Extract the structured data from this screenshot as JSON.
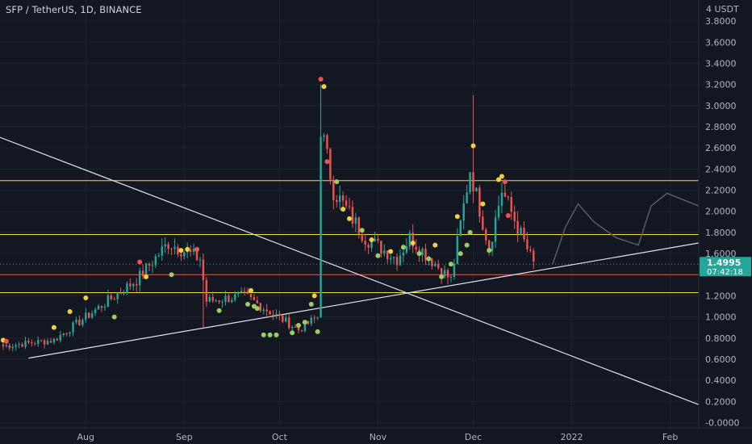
{
  "header": {
    "symbol_title": "SFP / TetherUS, 1D, BINANCE"
  },
  "axis": {
    "currency": "4 USDT",
    "ytick_labels": [
      "3.8000",
      "3.6000",
      "3.4000",
      "3.2000",
      "3.0000",
      "2.8000",
      "2.6000",
      "2.4000",
      "2.2000",
      "2.0000",
      "1.8000",
      "1.6000",
      "1.2000",
      "1.0000",
      "0.8000",
      "0.6000",
      "0.4000",
      "0.2000",
      "-0.0000"
    ],
    "xtick_labels": [
      "Aug",
      "Sep",
      "Oct",
      "Nov",
      "Dec",
      "2022",
      "Feb"
    ]
  },
  "price_badge": {
    "price": "1.4995",
    "countdown": "07:42:18",
    "color": "#26a69a"
  },
  "colors": {
    "background": "#131722",
    "up": "#26a69a",
    "down": "#ef5350",
    "level": "#e8e23a",
    "red_level": "#ef5350",
    "trend": "#e0e3eb",
    "dot_yellow": "#f4d03f",
    "dot_red": "#ef5350",
    "dot_green": "#9ccc65"
  },
  "chart_data": {
    "type": "candlestick",
    "title": "SFP / TetherUS, 1D, BINANCE",
    "ylim": [
      -0.05,
      4.0
    ],
    "xlim": [
      "2021-07-05",
      "2022-02-10"
    ],
    "grid": true,
    "horizontal_levels": [
      2.29,
      1.78,
      1.4,
      1.23
    ],
    "trendlines": [
      {
        "from": [
          "2021-07-05",
          2.7
        ],
        "to": [
          "2022-02-10",
          0.17
        ]
      },
      {
        "from": [
          "2021-07-14",
          0.61
        ],
        "to": [
          "2022-02-10",
          1.7
        ]
      }
    ],
    "projection_path": [
      [
        "2021-12-26",
        1.5
      ],
      [
        "2021-12-30",
        1.85
      ],
      [
        "2022-01-03",
        2.07
      ],
      [
        "2022-01-08",
        1.9
      ],
      [
        "2022-01-15",
        1.75
      ],
      [
        "2022-01-22",
        1.68
      ],
      [
        "2022-01-26",
        2.05
      ],
      [
        "2022-01-31",
        2.17
      ],
      [
        "2022-02-10",
        2.05
      ]
    ],
    "segments": [
      {
        "start": "2021-07-05",
        "end": "2021-07-22",
        "from": 0.72,
        "to": 0.78
      },
      {
        "start": "2021-07-22",
        "end": "2021-08-17",
        "from": 0.78,
        "to": 1.35
      },
      {
        "start": "2021-08-17",
        "end": "2021-08-27",
        "from": 1.35,
        "to": 1.7
      },
      {
        "start": "2021-08-27",
        "end": "2021-09-06",
        "from": 1.7,
        "to": 1.55
      },
      {
        "start": "2021-09-06",
        "end": "2021-09-08",
        "from": 1.55,
        "to": 1.15
      },
      {
        "start": "2021-09-08",
        "end": "2021-09-20",
        "from": 1.15,
        "to": 1.2
      },
      {
        "start": "2021-09-20",
        "end": "2021-10-07",
        "from": 1.2,
        "to": 0.88
      },
      {
        "start": "2021-10-07",
        "end": "2021-10-13",
        "from": 0.88,
        "to": 1.0
      },
      {
        "start": "2021-10-13",
        "end": "2021-10-14",
        "from": 1.0,
        "to": 2.8
      },
      {
        "start": "2021-10-14",
        "end": "2021-10-18",
        "from": 2.8,
        "to": 2.2
      },
      {
        "start": "2021-10-18",
        "end": "2021-10-28",
        "from": 2.2,
        "to": 1.75
      },
      {
        "start": "2021-10-28",
        "end": "2021-11-07",
        "from": 1.75,
        "to": 1.55
      },
      {
        "start": "2021-11-07",
        "end": "2021-11-11",
        "from": 1.55,
        "to": 1.75
      },
      {
        "start": "2021-11-11",
        "end": "2021-11-24",
        "from": 1.75,
        "to": 1.35
      },
      {
        "start": "2021-11-24",
        "end": "2021-11-30",
        "from": 1.35,
        "to": 2.4
      },
      {
        "start": "2021-11-30",
        "end": "2021-12-06",
        "from": 2.4,
        "to": 1.65
      },
      {
        "start": "2021-12-06",
        "end": "2021-12-10",
        "from": 1.65,
        "to": 2.2
      },
      {
        "start": "2021-12-10",
        "end": "2021-12-20",
        "from": 2.2,
        "to": 1.5
      }
    ],
    "spikes": [
      {
        "date": "2021-09-07",
        "low": 0.9
      },
      {
        "date": "2021-10-14",
        "high": 3.2
      },
      {
        "date": "2021-12-01",
        "high": 3.1
      }
    ],
    "signals": [
      {
        "date": "2021-07-06",
        "value": 0.78,
        "color": "dot_yellow"
      },
      {
        "date": "2021-07-07",
        "value": 0.77,
        "color": "dot_red"
      },
      {
        "date": "2021-07-22",
        "value": 0.9,
        "color": "dot_yellow"
      },
      {
        "date": "2021-07-27",
        "value": 1.05,
        "color": "dot_yellow"
      },
      {
        "date": "2021-08-01",
        "value": 1.18,
        "color": "dot_yellow"
      },
      {
        "date": "2021-08-10",
        "value": 1.0,
        "color": "dot_green"
      },
      {
        "date": "2021-08-18",
        "value": 1.52,
        "color": "dot_red"
      },
      {
        "date": "2021-08-20",
        "value": 1.38,
        "color": "dot_yellow"
      },
      {
        "date": "2021-08-28",
        "value": 1.4,
        "color": "dot_green"
      },
      {
        "date": "2021-08-31",
        "value": 1.63,
        "color": "dot_yellow"
      },
      {
        "date": "2021-09-02",
        "value": 1.64,
        "color": "dot_yellow"
      },
      {
        "date": "2021-09-05",
        "value": 1.64,
        "color": "dot_red"
      },
      {
        "date": "2021-09-12",
        "value": 1.06,
        "color": "dot_green"
      },
      {
        "date": "2021-09-22",
        "value": 1.25,
        "color": "dot_yellow"
      },
      {
        "date": "2021-09-21",
        "value": 1.12,
        "color": "dot_green"
      },
      {
        "date": "2021-09-23",
        "value": 1.1,
        "color": "dot_green"
      },
      {
        "date": "2021-09-24",
        "value": 1.08,
        "color": "dot_green"
      },
      {
        "date": "2021-09-26",
        "value": 0.83,
        "color": "dot_green"
      },
      {
        "date": "2021-09-28",
        "value": 0.83,
        "color": "dot_green"
      },
      {
        "date": "2021-09-30",
        "value": 0.83,
        "color": "dot_green"
      },
      {
        "date": "2021-10-05",
        "value": 0.85,
        "color": "dot_green"
      },
      {
        "date": "2021-10-07",
        "value": 0.92,
        "color": "dot_green"
      },
      {
        "date": "2021-10-09",
        "value": 0.95,
        "color": "dot_green"
      },
      {
        "date": "2021-10-11",
        "value": 1.12,
        "color": "dot_green"
      },
      {
        "date": "2021-10-12",
        "value": 1.2,
        "color": "dot_yellow"
      },
      {
        "date": "2021-10-13",
        "value": 0.86,
        "color": "dot_green"
      },
      {
        "date": "2021-10-14",
        "value": 3.25,
        "color": "dot_red"
      },
      {
        "date": "2021-10-15",
        "value": 3.18,
        "color": "dot_yellow"
      },
      {
        "date": "2021-10-16",
        "value": 2.47,
        "color": "dot_red"
      },
      {
        "date": "2021-10-19",
        "value": 2.28,
        "color": "dot_green"
      },
      {
        "date": "2021-10-21",
        "value": 2.02,
        "color": "dot_yellow"
      },
      {
        "date": "2021-10-23",
        "value": 1.93,
        "color": "dot_yellow"
      },
      {
        "date": "2021-10-27",
        "value": 1.82,
        "color": "dot_green"
      },
      {
        "date": "2021-10-30",
        "value": 1.73,
        "color": "dot_yellow"
      },
      {
        "date": "2021-11-01",
        "value": 1.58,
        "color": "dot_green"
      },
      {
        "date": "2021-11-05",
        "value": 1.62,
        "color": "dot_yellow"
      },
      {
        "date": "2021-11-09",
        "value": 1.66,
        "color": "dot_green"
      },
      {
        "date": "2021-11-12",
        "value": 1.7,
        "color": "dot_yellow"
      },
      {
        "date": "2021-11-14",
        "value": 1.6,
        "color": "dot_green"
      },
      {
        "date": "2021-11-17",
        "value": 1.55,
        "color": "dot_green"
      },
      {
        "date": "2021-11-19",
        "value": 1.68,
        "color": "dot_yellow"
      },
      {
        "date": "2021-11-21",
        "value": 1.38,
        "color": "dot_green"
      },
      {
        "date": "2021-11-24",
        "value": 1.5,
        "color": "dot_green"
      },
      {
        "date": "2021-11-26",
        "value": 1.95,
        "color": "dot_yellow"
      },
      {
        "date": "2021-11-27",
        "value": 1.6,
        "color": "dot_green"
      },
      {
        "date": "2021-11-29",
        "value": 1.68,
        "color": "dot_green"
      },
      {
        "date": "2021-11-30",
        "value": 1.8,
        "color": "dot_green"
      },
      {
        "date": "2021-12-01",
        "value": 2.62,
        "color": "dot_yellow"
      },
      {
        "date": "2021-12-04",
        "value": 2.07,
        "color": "dot_yellow"
      },
      {
        "date": "2021-12-06",
        "value": 1.63,
        "color": "dot_green"
      },
      {
        "date": "2021-12-09",
        "value": 2.3,
        "color": "dot_yellow"
      },
      {
        "date": "2021-12-10",
        "value": 2.33,
        "color": "dot_yellow"
      },
      {
        "date": "2021-12-11",
        "value": 2.28,
        "color": "dot_red"
      },
      {
        "date": "2021-12-12",
        "value": 1.96,
        "color": "dot_red"
      }
    ]
  }
}
